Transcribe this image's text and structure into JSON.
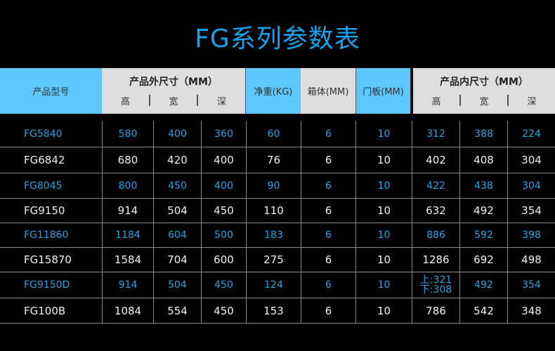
{
  "title": "FG系列参数表",
  "headers": {
    "model": "产品型号",
    "outer": "产品外尺寸（MM）",
    "inner": "产品内尺寸（MM）",
    "sub": [
      "高",
      "宽",
      "深"
    ],
    "weight": "净重(KG)",
    "box": "箱体(MM)",
    "door": "门板(MM)"
  },
  "rows": [
    {
      "model": "FG5840",
      "v": [
        "580",
        "400",
        "360",
        "60",
        "6",
        "10",
        "312",
        "388",
        "224"
      ]
    },
    {
      "model": "FG6842",
      "v": [
        "680",
        "420",
        "400",
        "76",
        "6",
        "10",
        "402",
        "408",
        "304"
      ]
    },
    {
      "model": "FG8045",
      "v": [
        "800",
        "450",
        "400",
        "90",
        "6",
        "10",
        "422",
        "438",
        "304"
      ]
    },
    {
      "model": "FG9150",
      "v": [
        "914",
        "504",
        "450",
        "110",
        "6",
        "10",
        "632",
        "492",
        "354"
      ]
    },
    {
      "model": "FG11860",
      "v": [
        "1184",
        "604",
        "500",
        "183",
        "6",
        "10",
        "886",
        "592",
        "398"
      ]
    },
    {
      "model": "FG15870",
      "v": [
        "1584",
        "704",
        "600",
        "275",
        "6",
        "10",
        "1286",
        "692",
        "498"
      ]
    },
    {
      "model": "FG9150D",
      "v": [
        "914",
        "504",
        "450",
        "124",
        "6",
        "10",
        "上:321",
        "492",
        "354"
      ],
      "inner_h2": "下:308"
    },
    {
      "model": "FG100B",
      "v": [
        "1084",
        "554",
        "450",
        "153",
        "6",
        "10",
        "786",
        "542",
        "348"
      ]
    }
  ],
  "colors": {
    "accent": "#1aa3ec",
    "header_blue": "#5cc8fd",
    "header_gray": "#dedede"
  }
}
